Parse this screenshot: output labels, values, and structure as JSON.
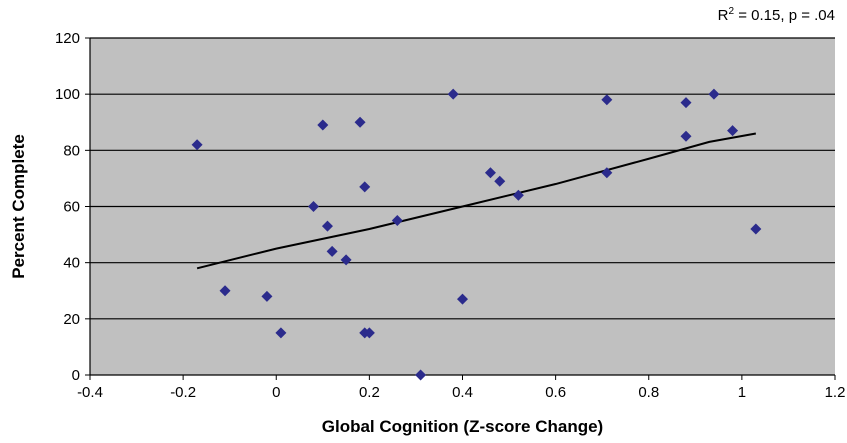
{
  "annotation": {
    "r2_prefix": "R",
    "r2_exp": "2",
    "r2_rest": " = 0.15, p = .04"
  },
  "chart_data": {
    "type": "scatter",
    "title": "",
    "xlabel": "Global Cognition (Z-score Change)",
    "ylabel": "Percent Complete",
    "xlim": [
      -0.4,
      1.2
    ],
    "ylim": [
      0,
      120
    ],
    "x_ticks": [
      -0.4,
      -0.2,
      0,
      0.2,
      0.4,
      0.6,
      0.8,
      1,
      1.2
    ],
    "x_tick_labels": [
      "-0.4",
      "-0.2",
      "0",
      "0.2",
      "0.4",
      "0.6",
      "0.8",
      "1",
      "1.2"
    ],
    "y_ticks": [
      0,
      20,
      40,
      60,
      80,
      100,
      120
    ],
    "y_tick_labels": [
      "0",
      "20",
      "40",
      "60",
      "80",
      "100",
      "120"
    ],
    "grid": "horizontal",
    "plot_background": "#c0c0c0",
    "marker_color": "#2b2b8c",
    "points": [
      {
        "x": -0.17,
        "y": 82
      },
      {
        "x": -0.11,
        "y": 30
      },
      {
        "x": -0.02,
        "y": 28
      },
      {
        "x": 0.01,
        "y": 15
      },
      {
        "x": 0.08,
        "y": 60
      },
      {
        "x": 0.1,
        "y": 89
      },
      {
        "x": 0.11,
        "y": 53
      },
      {
        "x": 0.12,
        "y": 44
      },
      {
        "x": 0.15,
        "y": 41
      },
      {
        "x": 0.18,
        "y": 90
      },
      {
        "x": 0.19,
        "y": 67
      },
      {
        "x": 0.19,
        "y": 15
      },
      {
        "x": 0.2,
        "y": 15
      },
      {
        "x": 0.26,
        "y": 55
      },
      {
        "x": 0.31,
        "y": 0
      },
      {
        "x": 0.38,
        "y": 100
      },
      {
        "x": 0.4,
        "y": 27
      },
      {
        "x": 0.46,
        "y": 72
      },
      {
        "x": 0.48,
        "y": 69
      },
      {
        "x": 0.52,
        "y": 64
      },
      {
        "x": 0.71,
        "y": 98
      },
      {
        "x": 0.71,
        "y": 72
      },
      {
        "x": 0.88,
        "y": 97
      },
      {
        "x": 0.88,
        "y": 85
      },
      {
        "x": 0.94,
        "y": 100
      },
      {
        "x": 0.98,
        "y": 87
      },
      {
        "x": 1.03,
        "y": 52
      }
    ],
    "trendline": {
      "points": [
        {
          "x": -0.17,
          "y": 38
        },
        {
          "x": 0.0,
          "y": 45
        },
        {
          "x": 0.2,
          "y": 52
        },
        {
          "x": 0.4,
          "y": 60
        },
        {
          "x": 0.6,
          "y": 68
        },
        {
          "x": 0.8,
          "y": 77
        },
        {
          "x": 0.93,
          "y": 83
        },
        {
          "x": 1.03,
          "y": 86
        }
      ]
    }
  }
}
